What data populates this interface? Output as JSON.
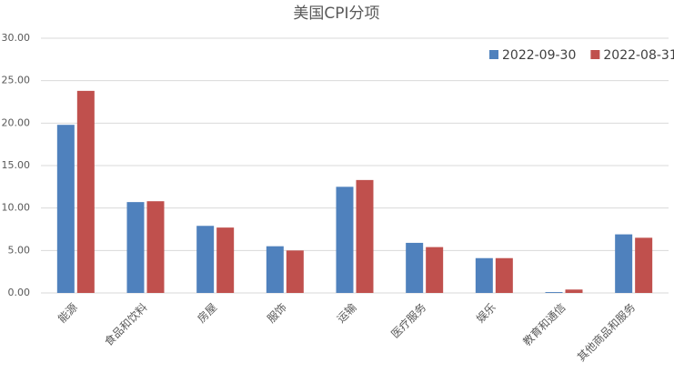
{
  "chart_data": {
    "type": "bar",
    "title": "美国CPI分项",
    "categories": [
      "能源",
      "食品和饮料",
      "房屋",
      "服饰",
      "运输",
      "医疗服务",
      "娱乐",
      "教育和通信",
      "其他商品和服务"
    ],
    "series": [
      {
        "name": "2022-09-30",
        "color": "#4f81bd",
        "values": [
          19.8,
          10.7,
          7.9,
          5.5,
          12.5,
          5.9,
          4.1,
          0.1,
          6.9
        ]
      },
      {
        "name": "2022-08-31",
        "color": "#c0504d",
        "values": [
          23.8,
          10.8,
          7.7,
          5.0,
          13.3,
          5.4,
          4.1,
          0.4,
          6.5
        ]
      }
    ],
    "ylim": [
      0,
      30
    ],
    "yticks": [
      {
        "value": 0,
        "label": "0.00"
      },
      {
        "value": 5,
        "label": "5.00"
      },
      {
        "value": 10,
        "label": "10.00"
      },
      {
        "value": 15,
        "label": "15.00"
      },
      {
        "value": 20,
        "label": "20.00"
      },
      {
        "value": 25,
        "label": "25.00"
      },
      {
        "value": 30,
        "label": "30.00"
      }
    ],
    "grid": true,
    "legend": "top-right"
  }
}
